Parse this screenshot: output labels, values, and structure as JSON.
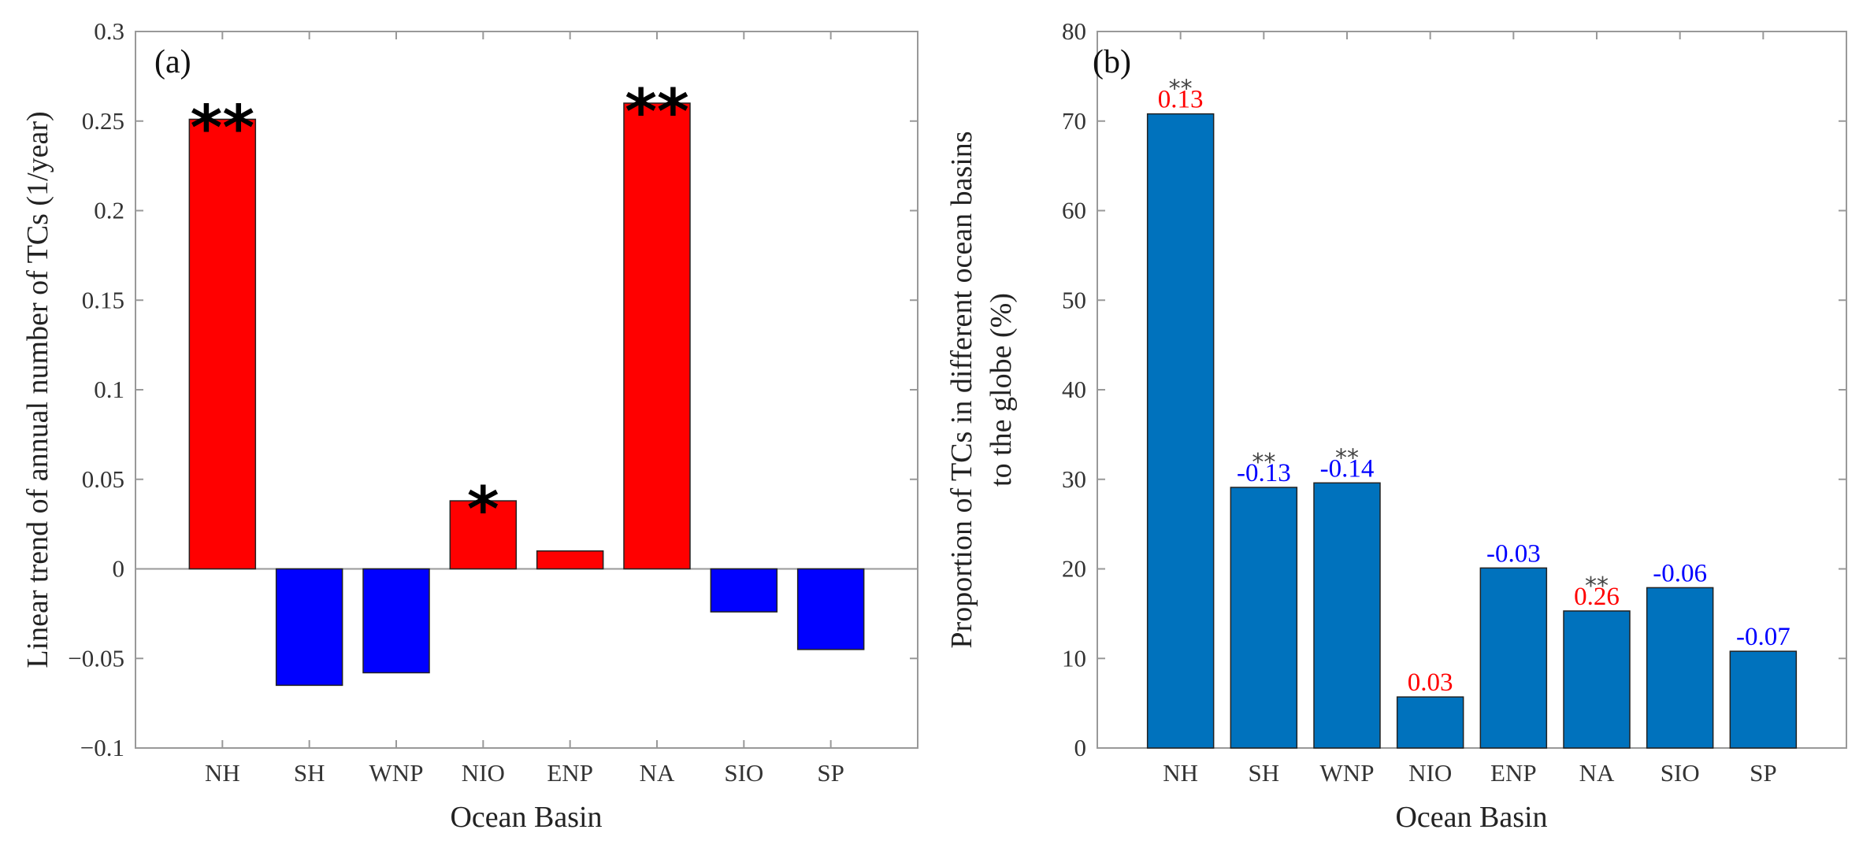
{
  "chart_data": [
    {
      "id": "a",
      "type": "bar",
      "panel_label": "(a)",
      "title": "",
      "xlabel": "Ocean Basin",
      "ylabel": "Linear trend of annual number of TCs (1/year)",
      "categories": [
        "NH",
        "SH",
        "WNP",
        "NIO",
        "ENP",
        "NA",
        "SIO",
        "SP"
      ],
      "values": [
        0.251,
        -0.065,
        -0.058,
        0.038,
        0.01,
        0.26,
        -0.024,
        -0.045
      ],
      "significance": [
        "**",
        "",
        "",
        "*",
        "",
        "**",
        "",
        ""
      ],
      "ylim": [
        -0.1,
        0.3
      ],
      "yticks": [
        -0.1,
        -0.05,
        0,
        0.05,
        0.1,
        0.15,
        0.2,
        0.25,
        0.3
      ],
      "ytick_labels": [
        "−0.1",
        "−0.05",
        "0",
        "0.05",
        "0.1",
        "0.15",
        "0.2",
        "0.25",
        "0.3"
      ],
      "positive_color": "#ff0000",
      "negative_color": "#0000ff",
      "grid": false
    },
    {
      "id": "b",
      "type": "bar",
      "panel_label": "(b)",
      "title": "",
      "xlabel": "Ocean Basin",
      "ylabel_lines": [
        "Proportion of TCs in different ocean basins",
        "to the globe (%)"
      ],
      "categories": [
        "NH",
        "SH",
        "WNP",
        "NIO",
        "ENP",
        "NA",
        "SIO",
        "SP"
      ],
      "values": [
        70.8,
        29.1,
        29.6,
        5.7,
        20.1,
        15.3,
        17.9,
        10.8
      ],
      "trend_labels": [
        "0.13",
        "-0.13",
        "-0.14",
        "0.03",
        "-0.03",
        "0.26",
        "-0.06",
        "-0.07"
      ],
      "trend_colors": [
        "#ff0000",
        "#0000ff",
        "#0000ff",
        "#ff0000",
        "#0000ff",
        "#ff0000",
        "#0000ff",
        "#0000ff"
      ],
      "significance": [
        "**",
        "**",
        "**",
        "",
        "",
        "**",
        "",
        ""
      ],
      "ylim": [
        0,
        80
      ],
      "yticks": [
        0,
        10,
        20,
        30,
        40,
        50,
        60,
        70,
        80
      ],
      "ytick_labels": [
        "0",
        "10",
        "20",
        "30",
        "40",
        "50",
        "60",
        "70",
        "80"
      ],
      "bar_color": "#0072bd",
      "grid": false
    }
  ]
}
